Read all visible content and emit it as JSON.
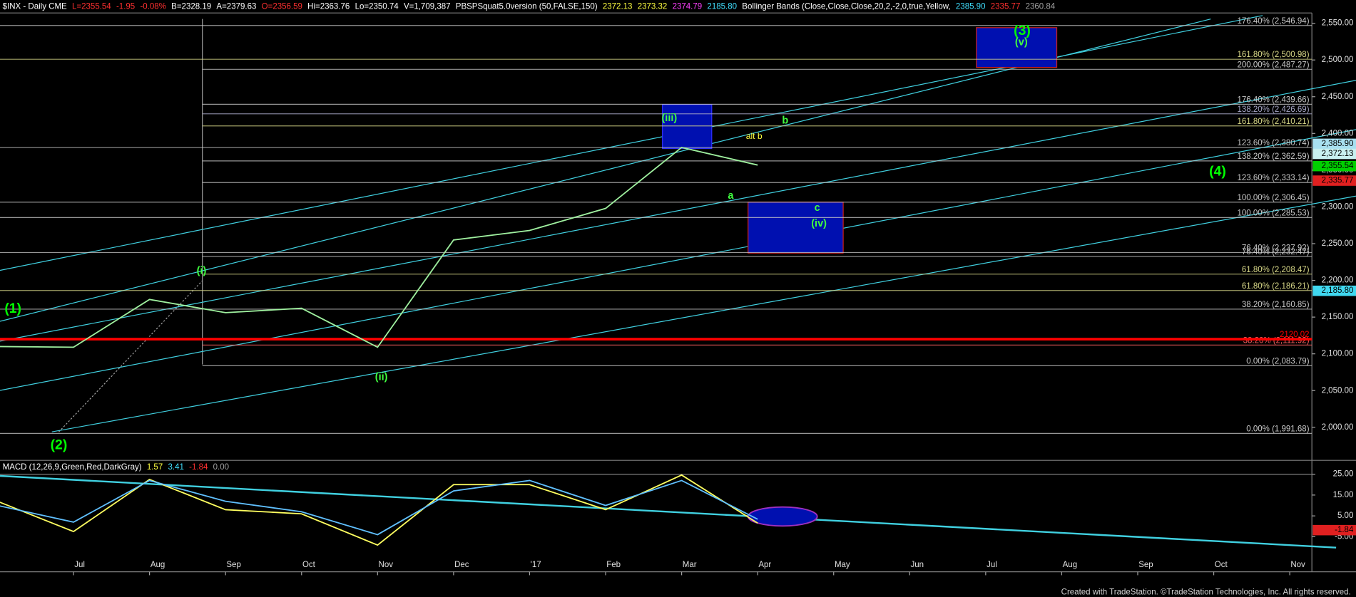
{
  "chart_data": [
    {
      "type": "line",
      "header": [
        {
          "text": "$INX - Daily  CME",
          "color": "#ffffff"
        },
        {
          "text": "L=2355.54",
          "color": "#ff3030"
        },
        {
          "text": "-1.95",
          "color": "#ff3030"
        },
        {
          "text": "-0.08%",
          "color": "#ff3030"
        },
        {
          "text": "B=2328.19",
          "color": "#ffffff"
        },
        {
          "text": "A=2379.63",
          "color": "#ffffff"
        },
        {
          "text": "O=2356.59",
          "color": "#ff3030"
        },
        {
          "text": "Hi=2363.76",
          "color": "#ffffff"
        },
        {
          "text": "Lo=2350.74",
          "color": "#ffffff"
        },
        {
          "text": "V=1,709,387",
          "color": "#ffffff"
        },
        {
          "text": "PBSPSquat5.0version (50,FALSE,150)",
          "color": "#ffffff"
        },
        {
          "text": "2372.13",
          "color": "#ffff40"
        },
        {
          "text": "2373.32",
          "color": "#ffff40"
        },
        {
          "text": "2374.79",
          "color": "#ff40ff"
        },
        {
          "text": "2185.80",
          "color": "#40e0ff"
        },
        {
          "text": "Bollinger Bands (Close,Close,Close,20,2,-2,0,true,Yellow,",
          "color": "#ffffff"
        },
        {
          "text": "2385.90",
          "color": "#40e0ff"
        },
        {
          "text": "2335.77",
          "color": "#ff3030"
        },
        {
          "text": "2360.84",
          "color": "#a0a0a0"
        }
      ],
      "categories": [
        null,
        "Jul",
        "Aug",
        "Sep",
        "Oct",
        "Nov",
        "Dec",
        "'17",
        "Feb",
        "Mar",
        "Apr",
        "May",
        "Jun",
        "Jul",
        "Aug",
        "Sep",
        "Oct",
        "Nov"
      ],
      "series": [
        {
          "color": "#9ff09f",
          "values": [
            2110,
            2109,
            2174,
            2156,
            2162,
            2109,
            2255,
            2268,
            2298,
            2381,
            2357,
            null,
            null,
            null,
            null,
            null,
            null,
            null
          ]
        }
      ],
      "ylim": [
        1955,
        2564
      ],
      "yticks": [
        {
          "value": 2000,
          "label": "2,000.00"
        },
        {
          "value": 2050,
          "label": "2,050.00"
        },
        {
          "value": 2100,
          "label": "2,100.00"
        },
        {
          "value": 2150,
          "label": "2,150.00"
        },
        {
          "value": 2200,
          "label": "2,200.00"
        },
        {
          "value": 2250,
          "label": "2,250.00"
        },
        {
          "value": 2300,
          "label": "2,300.00"
        },
        {
          "value": 2350,
          "label": "2,350.00"
        },
        {
          "value": 2400,
          "label": "2,400.00"
        },
        {
          "value": 2450,
          "label": "2,450.00"
        },
        {
          "value": 2500,
          "label": "2,500.00"
        },
        {
          "value": 2550,
          "label": "2,550.00"
        }
      ],
      "levels": [
        {
          "value": 2546.94,
          "label": "176.40% (2,546.94)",
          "color": "#c8c8c8"
        },
        {
          "value": 2500.98,
          "label": "161.80% (2,500.98)",
          "color": "#d8d888"
        },
        {
          "value": 2487.27,
          "label": "200.00% (2,487.27)",
          "color": "#c8c8c8"
        },
        {
          "value": 2439.66,
          "label": "176.40% (2,439.66)",
          "color": "#c8c8c8"
        },
        {
          "value": 2426.69,
          "label": "138.20% (2,426.69)",
          "color": "#a8a8c8"
        },
        {
          "value": 2410.21,
          "label": "161.80% (2,410.21)",
          "color": "#d8d888"
        },
        {
          "value": 2380.74,
          "label": "123.60% (2,380.74)",
          "color": "#c8c8c8"
        },
        {
          "value": 2362.59,
          "label": "138.20% (2,362.59)",
          "color": "#c8c8c8"
        },
        {
          "value": 2333.14,
          "label": "123.60% (2,333.14)",
          "color": "#c8c8c8"
        },
        {
          "value": 2306.45,
          "label": "100.00% (2,306.45)",
          "color": "#c8c8c8"
        },
        {
          "value": 2285.53,
          "label": "100.00% (2,285.53)",
          "color": "#c8c8c8"
        },
        {
          "value": 2237.92,
          "label": "76.40% (2,237.92)",
          "color": "#c8c8c8"
        },
        {
          "value": 2232.47,
          "label": "76.40% (2,232.47)",
          "color": "#c8c8c8"
        },
        {
          "value": 2208.47,
          "label": "61.80% (2,208.47)",
          "color": "#d8d888"
        },
        {
          "value": 2186.21,
          "label": "61.80% (2,186.21)",
          "color": "#d8d888"
        },
        {
          "value": 2160.85,
          "label": "38.20% (2,160.85)",
          "color": "#c8c8c8"
        },
        {
          "value": 2111.92,
          "label": "38.20% (2,111.92)",
          "color": "#ff6060"
        },
        {
          "value": 2083.79,
          "label": "0.00% (2,083.79)",
          "color": "#c8c8c8"
        },
        {
          "value": 1991.68,
          "label": "0.00% (1,991.68)",
          "color": "#c8c8c8"
        },
        {
          "value": 2120.02,
          "label": "2120.02",
          "color": "#ff0000",
          "width": 3
        }
      ],
      "tags": [
        {
          "value": 2385.9,
          "label": "2,385.90",
          "color": "#a8e0f0"
        },
        {
          "value": 2372.13,
          "label": "2,372.13",
          "color": "#c8f0f0"
        },
        {
          "value": 2355.54,
          "label": "2,355.54",
          "color": "#00d000"
        },
        {
          "value": 2335.77,
          "label": "2,335.77",
          "color": "#e02020"
        },
        {
          "value": 2185.8,
          "label": "2,185.80",
          "color": "#40d8f0"
        }
      ],
      "annotations": [
        {
          "text": "(1)",
          "color": "#00ff00"
        },
        {
          "text": "(2)",
          "color": "#00ff00"
        },
        {
          "text": "(i)",
          "color": "#40ff40"
        },
        {
          "text": "(ii)",
          "color": "#40ff40"
        },
        {
          "text": "(iii)",
          "color": "#40ff40"
        },
        {
          "text": "(3)",
          "color": "#00ff00"
        },
        {
          "text": "(v)",
          "color": "#40ff40"
        },
        {
          "text": "alt b",
          "color": "#ffff40"
        },
        {
          "text": "b",
          "color": "#40ff40"
        },
        {
          "text": "a",
          "color": "#40ff40"
        },
        {
          "text": "c",
          "color": "#40ff40"
        },
        {
          "text": "(iv)",
          "color": "#40ff40"
        },
        {
          "text": "(4)",
          "color": "#00ff00"
        }
      ]
    },
    {
      "type": "line",
      "header": [
        {
          "text": "MACD (12,26,9,Green,Red,DarkGray)",
          "color": "#ffffff"
        },
        {
          "text": "1.57",
          "color": "#ffff40"
        },
        {
          "text": "3.41",
          "color": "#40e0ff"
        },
        {
          "text": "-1.84",
          "color": "#ff3030"
        },
        {
          "text": "0.00",
          "color": "#a0a0a0"
        }
      ],
      "series": [
        {
          "color": "#ffff60",
          "values": [
            12,
            -2.5,
            22.5,
            8,
            6,
            -9,
            20,
            20,
            8,
            24.6,
            1.57,
            null,
            null,
            null,
            null,
            null,
            null,
            null
          ]
        },
        {
          "color": "#60c0ff",
          "values": [
            10,
            2,
            22,
            12,
            7,
            -4,
            17,
            22,
            10,
            22,
            3.41,
            null,
            null,
            null,
            null,
            null,
            null,
            null
          ]
        }
      ],
      "ylim": [
        -21,
        30
      ],
      "yticks": [
        {
          "value": 25,
          "label": "25.00"
        },
        {
          "value": 15,
          "label": "15.00"
        },
        {
          "value": 5,
          "label": "5.00"
        },
        {
          "value": -5,
          "label": "-5.00"
        }
      ],
      "tags": [
        {
          "value": -1.84,
          "label": "-1.84",
          "color": "#e02020"
        }
      ]
    }
  ],
  "footer": "Created with TradeStation. ©TradeStation Technologies, Inc. All rights reserved."
}
